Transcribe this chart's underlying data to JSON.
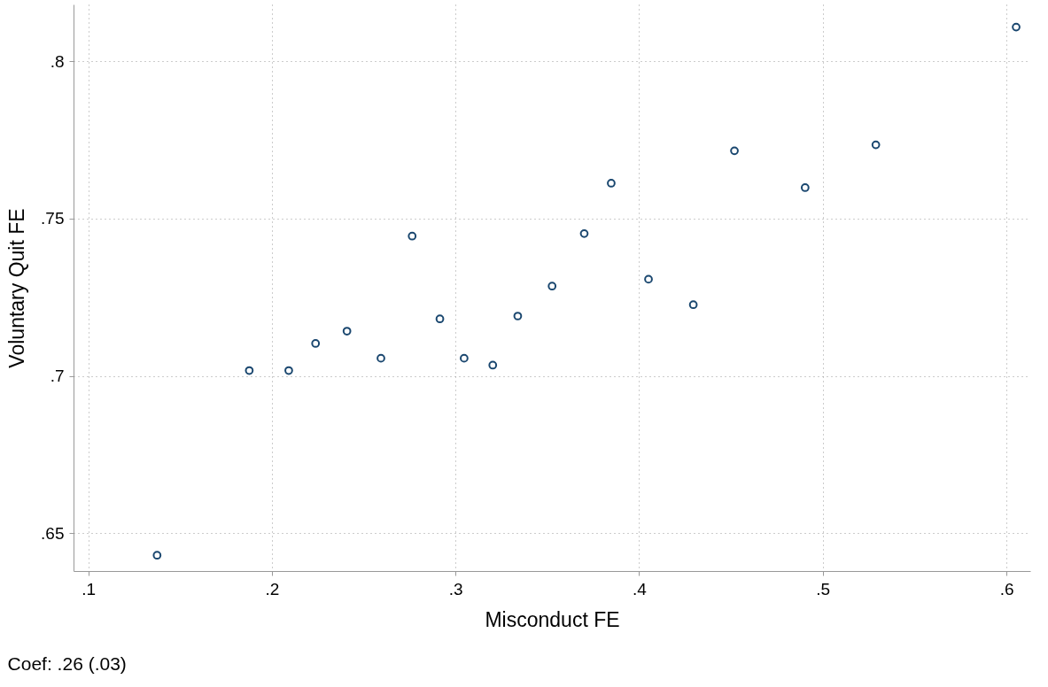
{
  "chart_data": {
    "type": "scatter",
    "xlabel": "Misconduct FE",
    "ylabel": "Voluntary Quit FE",
    "x": [
      0.1375,
      0.1877,
      0.2092,
      0.2238,
      0.2409,
      0.2594,
      0.2764,
      0.2915,
      0.3047,
      0.3203,
      0.3339,
      0.3526,
      0.3701,
      0.3848,
      0.4051,
      0.4295,
      0.4519,
      0.4904,
      0.5289,
      0.6053
    ],
    "series": [
      {
        "color": "#1a476f",
        "values": [
          0.643,
          0.7017,
          0.7017,
          0.7103,
          0.7142,
          0.7056,
          0.7444,
          0.7181,
          0.7056,
          0.7034,
          0.719,
          0.7285,
          0.7452,
          0.7612,
          0.7307,
          0.7226,
          0.7715,
          0.7598,
          0.7734,
          0.8108
        ]
      }
    ],
    "xlim": [
      0.092,
      0.613
    ],
    "ylim": [
      0.638,
      0.818
    ],
    "xticks": [
      {
        "value": 0.1,
        "label": ".1"
      },
      {
        "value": 0.2,
        "label": ".2"
      },
      {
        "value": 0.3,
        "label": ".3"
      },
      {
        "value": 0.4,
        "label": ".4"
      },
      {
        "value": 0.5,
        "label": ".5"
      },
      {
        "value": 0.6,
        "label": ".6"
      }
    ],
    "yticks": [
      {
        "value": 0.65,
        "label": ".65"
      },
      {
        "value": 0.7,
        "label": ".7"
      },
      {
        "value": 0.75,
        "label": ".75"
      },
      {
        "value": 0.8,
        "label": ".8"
      }
    ],
    "grid": true,
    "marker": "circle",
    "legend": false,
    "annotations": [
      "Coef: .26 (.03)"
    ]
  }
}
